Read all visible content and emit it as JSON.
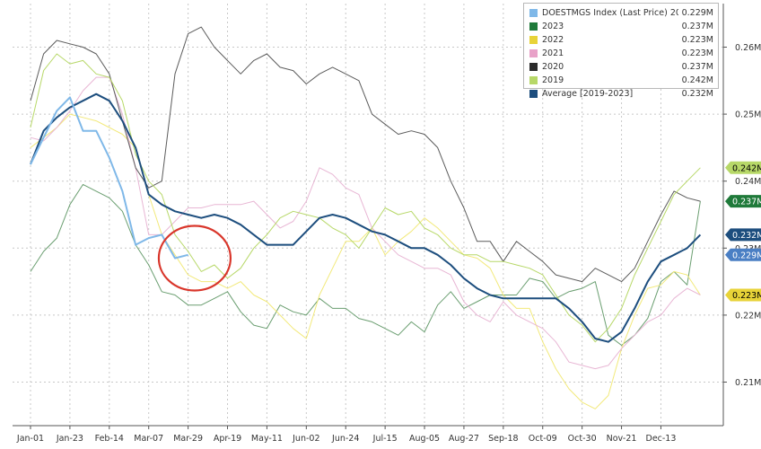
{
  "chart_data": {
    "type": "line",
    "x_ticks": [
      "Jan-01",
      "Jan-23",
      "Feb-14",
      "Mar-07",
      "Mar-29",
      "Apr-19",
      "May-11",
      "Jun-02",
      "Jun-24",
      "Jul-15",
      "Aug-05",
      "Aug-27",
      "Sep-18",
      "Oct-09",
      "Oct-30",
      "Nov-21",
      "Dec-13"
    ],
    "y_ticks": [
      "0.21M",
      "0.22M",
      "0.23M",
      "0.24M",
      "0.25M",
      "0.26M"
    ],
    "y_tick_values": [
      0.21,
      0.22,
      0.23,
      0.24,
      0.25,
      0.26
    ],
    "ylim": [
      0.2035,
      0.2665
    ],
    "xlim": [
      0,
      52
    ],
    "grid": true,
    "legend_position": "top-right",
    "series": [
      {
        "name": "DOESTMGS Index (Last Price) 2024",
        "legend_value": "0.229M",
        "color": "#7fb8e8",
        "width": 2,
        "values": [
          0.2425,
          0.2465,
          0.2505,
          0.2525,
          0.2475,
          0.2475,
          0.2435,
          0.2385,
          0.2305,
          0.2315,
          0.232,
          0.2285,
          0.229
        ]
      },
      {
        "name": "2023",
        "legend_value": "0.237M",
        "color": "#6a9e70",
        "width": 1,
        "values": [
          0.2265,
          0.2295,
          0.2315,
          0.2365,
          0.2395,
          0.2385,
          0.2375,
          0.2355,
          0.2305,
          0.2275,
          0.2235,
          0.223,
          0.2215,
          0.2215,
          0.2225,
          0.2235,
          0.2205,
          0.2185,
          0.218,
          0.2215,
          0.2205,
          0.22,
          0.2225,
          0.221,
          0.221,
          0.2195,
          0.219,
          0.218,
          0.217,
          0.219,
          0.2175,
          0.2215,
          0.2235,
          0.221,
          0.222,
          0.223,
          0.223,
          0.223,
          0.2255,
          0.225,
          0.2225,
          0.2235,
          0.224,
          0.225,
          0.217,
          0.2155,
          0.217,
          0.2195,
          0.225,
          0.2265,
          0.2245,
          0.237
        ]
      },
      {
        "name": "2022",
        "legend_value": "0.223M",
        "color": "#f2e97a",
        "width": 1,
        "values": [
          0.245,
          0.2465,
          0.248,
          0.25,
          0.2495,
          0.249,
          0.248,
          0.247,
          0.245,
          0.238,
          0.232,
          0.229,
          0.226,
          0.225,
          0.225,
          0.224,
          0.225,
          0.223,
          0.222,
          0.22,
          0.218,
          0.2165,
          0.223,
          0.227,
          0.231,
          0.231,
          0.233,
          0.229,
          0.231,
          0.2325,
          0.2345,
          0.233,
          0.231,
          0.229,
          0.2285,
          0.227,
          0.223,
          0.221,
          0.221,
          0.216,
          0.212,
          0.209,
          0.207,
          0.206,
          0.208,
          0.215,
          0.22,
          0.224,
          0.2245,
          0.2265,
          0.226,
          0.223
        ]
      },
      {
        "name": "2021",
        "legend_value": "0.223M",
        "color": "#e8b6d4",
        "width": 1,
        "values": [
          0.2465,
          0.246,
          0.248,
          0.2505,
          0.2535,
          0.2555,
          0.2555,
          0.25,
          0.242,
          0.232,
          0.232,
          0.234,
          0.236,
          0.236,
          0.2365,
          0.2365,
          0.2365,
          0.237,
          0.235,
          0.233,
          0.234,
          0.237,
          0.242,
          0.241,
          0.239,
          0.238,
          0.233,
          0.231,
          0.229,
          0.228,
          0.227,
          0.227,
          0.226,
          0.222,
          0.22,
          0.219,
          0.222,
          0.22,
          0.219,
          0.218,
          0.216,
          0.213,
          0.2125,
          0.212,
          0.2125,
          0.215,
          0.217,
          0.219,
          0.22,
          0.2225,
          0.224,
          0.223
        ]
      },
      {
        "name": "2020",
        "legend_value": "0.237M",
        "color": "#5b5b5b",
        "width": 1,
        "values": [
          0.252,
          0.259,
          0.261,
          0.2605,
          0.26,
          0.259,
          0.256,
          0.249,
          0.242,
          0.239,
          0.24,
          0.256,
          0.262,
          0.263,
          0.26,
          0.258,
          0.256,
          0.258,
          0.259,
          0.257,
          0.2565,
          0.2545,
          0.256,
          0.257,
          0.256,
          0.255,
          0.25,
          0.2485,
          0.247,
          0.2475,
          0.247,
          0.245,
          0.24,
          0.236,
          0.231,
          0.231,
          0.228,
          0.231,
          0.2295,
          0.228,
          0.226,
          0.2255,
          0.225,
          0.227,
          0.226,
          0.225,
          0.227,
          0.231,
          0.235,
          0.2385,
          0.2375,
          0.237
        ]
      },
      {
        "name": "2019",
        "legend_value": "0.242M",
        "color": "#b7d868",
        "width": 1,
        "values": [
          0.248,
          0.2565,
          0.259,
          0.2575,
          0.258,
          0.256,
          0.2555,
          0.252,
          0.244,
          0.24,
          0.238,
          0.232,
          0.2295,
          0.2265,
          0.2275,
          0.2255,
          0.227,
          0.23,
          0.232,
          0.2345,
          0.2355,
          0.235,
          0.2345,
          0.233,
          0.232,
          0.23,
          0.233,
          0.236,
          0.235,
          0.2355,
          0.233,
          0.232,
          0.23,
          0.229,
          0.229,
          0.228,
          0.228,
          0.2275,
          0.227,
          0.226,
          0.223,
          0.22,
          0.2185,
          0.216,
          0.218,
          0.221,
          0.226,
          0.23,
          0.234,
          0.238,
          0.24,
          0.242
        ]
      },
      {
        "name": "Average  [2019-2023]",
        "legend_value": "0.232M",
        "color": "#1d4e7e",
        "width": 2,
        "values": [
          0.2425,
          0.2475,
          0.2495,
          0.251,
          0.252,
          0.253,
          0.252,
          0.249,
          0.245,
          0.238,
          0.2365,
          0.2355,
          0.235,
          0.2345,
          0.235,
          0.2345,
          0.2335,
          0.232,
          0.2305,
          0.2305,
          0.2305,
          0.2325,
          0.2345,
          0.235,
          0.2345,
          0.2335,
          0.2325,
          0.232,
          0.231,
          0.23,
          0.23,
          0.229,
          0.2275,
          0.2255,
          0.224,
          0.223,
          0.2225,
          0.2225,
          0.2225,
          0.2225,
          0.2225,
          0.221,
          0.219,
          0.2165,
          0.216,
          0.2175,
          0.221,
          0.225,
          0.228,
          0.229,
          0.23,
          0.232
        ]
      }
    ],
    "right_labels": [
      {
        "text": "0.242M",
        "value": 0.242,
        "bg": "#b7d868",
        "fg": "#000000"
      },
      {
        "text": "0.237M",
        "value": 0.237,
        "bg": "#1f7a3a",
        "fg": "#ffffff"
      },
      {
        "text": "0.232M",
        "value": 0.232,
        "bg": "#1d4e7e",
        "fg": "#ffffff"
      },
      {
        "text": "0.229M",
        "value": 0.229,
        "bg": "#4a7fc4",
        "fg": "#ffffff"
      },
      {
        "text": "0.223M",
        "value": 0.223,
        "bg": "#e8d338",
        "fg": "#000000"
      }
    ],
    "annotations": [
      {
        "type": "circle",
        "color": "#d9362b",
        "center_week": 12.5,
        "center_value": 0.2285,
        "note": "highlight"
      }
    ]
  },
  "legend": {
    "rows": [
      {
        "name": "DOESTMGS Index (Last Price) 2024",
        "value": "0.229M",
        "color": "#7fb8e8"
      },
      {
        "name": "2023",
        "value": "0.237M",
        "color": "#1f7a3a"
      },
      {
        "name": "2022",
        "value": "0.223M",
        "color": "#e8d338"
      },
      {
        "name": "2021",
        "value": "0.223M",
        "color": "#e8a2c8"
      },
      {
        "name": "2020",
        "value": "0.237M",
        "color": "#2b2b2b"
      },
      {
        "name": "2019",
        "value": "0.242M",
        "color": "#b7d868"
      },
      {
        "name": "Average  [2019-2023]",
        "value": "0.232M",
        "color": "#1d4e7e"
      }
    ]
  }
}
